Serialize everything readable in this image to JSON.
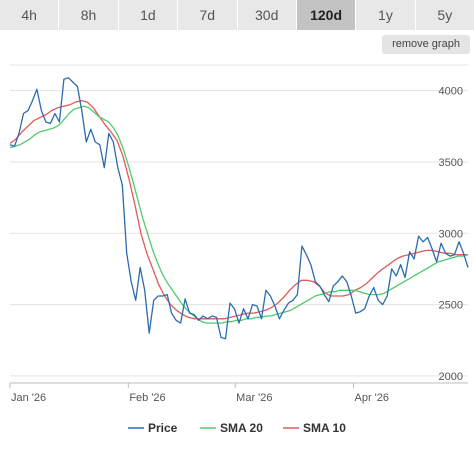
{
  "tabs": [
    {
      "label": "4h",
      "active": false
    },
    {
      "label": "8h",
      "active": false
    },
    {
      "label": "1d",
      "active": false
    },
    {
      "label": "7d",
      "active": false
    },
    {
      "label": "30d",
      "active": false
    },
    {
      "label": "120d",
      "active": true
    },
    {
      "label": "1y",
      "active": false
    },
    {
      "label": "5y",
      "active": false
    }
  ],
  "remove_graph_label": "remove graph",
  "chart_data": {
    "type": "line",
    "x_tick_labels": [
      "Jan '26",
      "Feb '26",
      "Mar '26",
      "Apr '26"
    ],
    "y_ticks": [
      2000,
      2500,
      3000,
      3500,
      4000
    ],
    "ylim": [
      1950,
      4250
    ],
    "grid": true,
    "legend_position": "bottom",
    "series": [
      {
        "name": "Price",
        "color": "#2b6cb0",
        "values": [
          3620,
          3610,
          3700,
          3840,
          3860,
          3930,
          4010,
          3860,
          3780,
          3770,
          3840,
          3780,
          4080,
          4090,
          4060,
          4030,
          3860,
          3640,
          3730,
          3640,
          3620,
          3460,
          3700,
          3640,
          3460,
          3340,
          2860,
          2660,
          2530,
          2760,
          2600,
          2300,
          2530,
          2560,
          2560,
          2570,
          2440,
          2390,
          2370,
          2540,
          2440,
          2430,
          2390,
          2420,
          2400,
          2420,
          2410,
          2270,
          2260,
          2510,
          2470,
          2370,
          2470,
          2400,
          2500,
          2490,
          2400,
          2600,
          2560,
          2490,
          2400,
          2460,
          2510,
          2530,
          2570,
          2910,
          2850,
          2780,
          2660,
          2630,
          2570,
          2520,
          2630,
          2660,
          2700,
          2660,
          2560,
          2440,
          2450,
          2470,
          2560,
          2620,
          2530,
          2500,
          2560,
          2750,
          2700,
          2780,
          2690,
          2870,
          2820,
          2980,
          2940,
          2970,
          2890,
          2800,
          2930,
          2860,
          2840,
          2850,
          2940,
          2860,
          2760
        ]
      },
      {
        "name": "SMA 20",
        "color": "#52c96e",
        "values": [
          3600,
          3610,
          3620,
          3640,
          3660,
          3690,
          3710,
          3720,
          3730,
          3740,
          3760,
          3800,
          3840,
          3870,
          3880,
          3890,
          3880,
          3850,
          3820,
          3800,
          3780,
          3740,
          3680,
          3590,
          3480,
          3360,
          3230,
          3100,
          2990,
          2880,
          2790,
          2710,
          2650,
          2600,
          2550,
          2500,
          2460,
          2430,
          2400,
          2380,
          2370,
          2370,
          2370,
          2370,
          2380,
          2380,
          2390,
          2390,
          2400,
          2400,
          2410,
          2410,
          2420,
          2420,
          2430,
          2440,
          2450,
          2460,
          2480,
          2500,
          2520,
          2540,
          2560,
          2570,
          2580,
          2590,
          2590,
          2600,
          2600,
          2600,
          2600,
          2590,
          2580,
          2570,
          2570,
          2570,
          2580,
          2600,
          2620,
          2640,
          2660,
          2680,
          2700,
          2720,
          2740,
          2760,
          2780,
          2800,
          2810,
          2820,
          2830,
          2840,
          2840,
          2850
        ]
      },
      {
        "name": "SMA 10",
        "color": "#e05a5a",
        "values": [
          3630,
          3660,
          3710,
          3750,
          3790,
          3810,
          3830,
          3860,
          3880,
          3890,
          3900,
          3920,
          3930,
          3920,
          3880,
          3820,
          3760,
          3710,
          3650,
          3540,
          3380,
          3200,
          3000,
          2860,
          2750,
          2640,
          2560,
          2500,
          2460,
          2430,
          2410,
          2400,
          2400,
          2400,
          2400,
          2400,
          2400,
          2410,
          2420,
          2430,
          2440,
          2440,
          2450,
          2460,
          2480,
          2510,
          2550,
          2600,
          2640,
          2670,
          2670,
          2660,
          2630,
          2580,
          2560,
          2560,
          2560,
          2570,
          2600,
          2620,
          2650,
          2690,
          2730,
          2760,
          2790,
          2820,
          2840,
          2850,
          2860,
          2870,
          2880,
          2880,
          2870,
          2860,
          2860,
          2850,
          2850,
          2850
        ]
      }
    ]
  }
}
